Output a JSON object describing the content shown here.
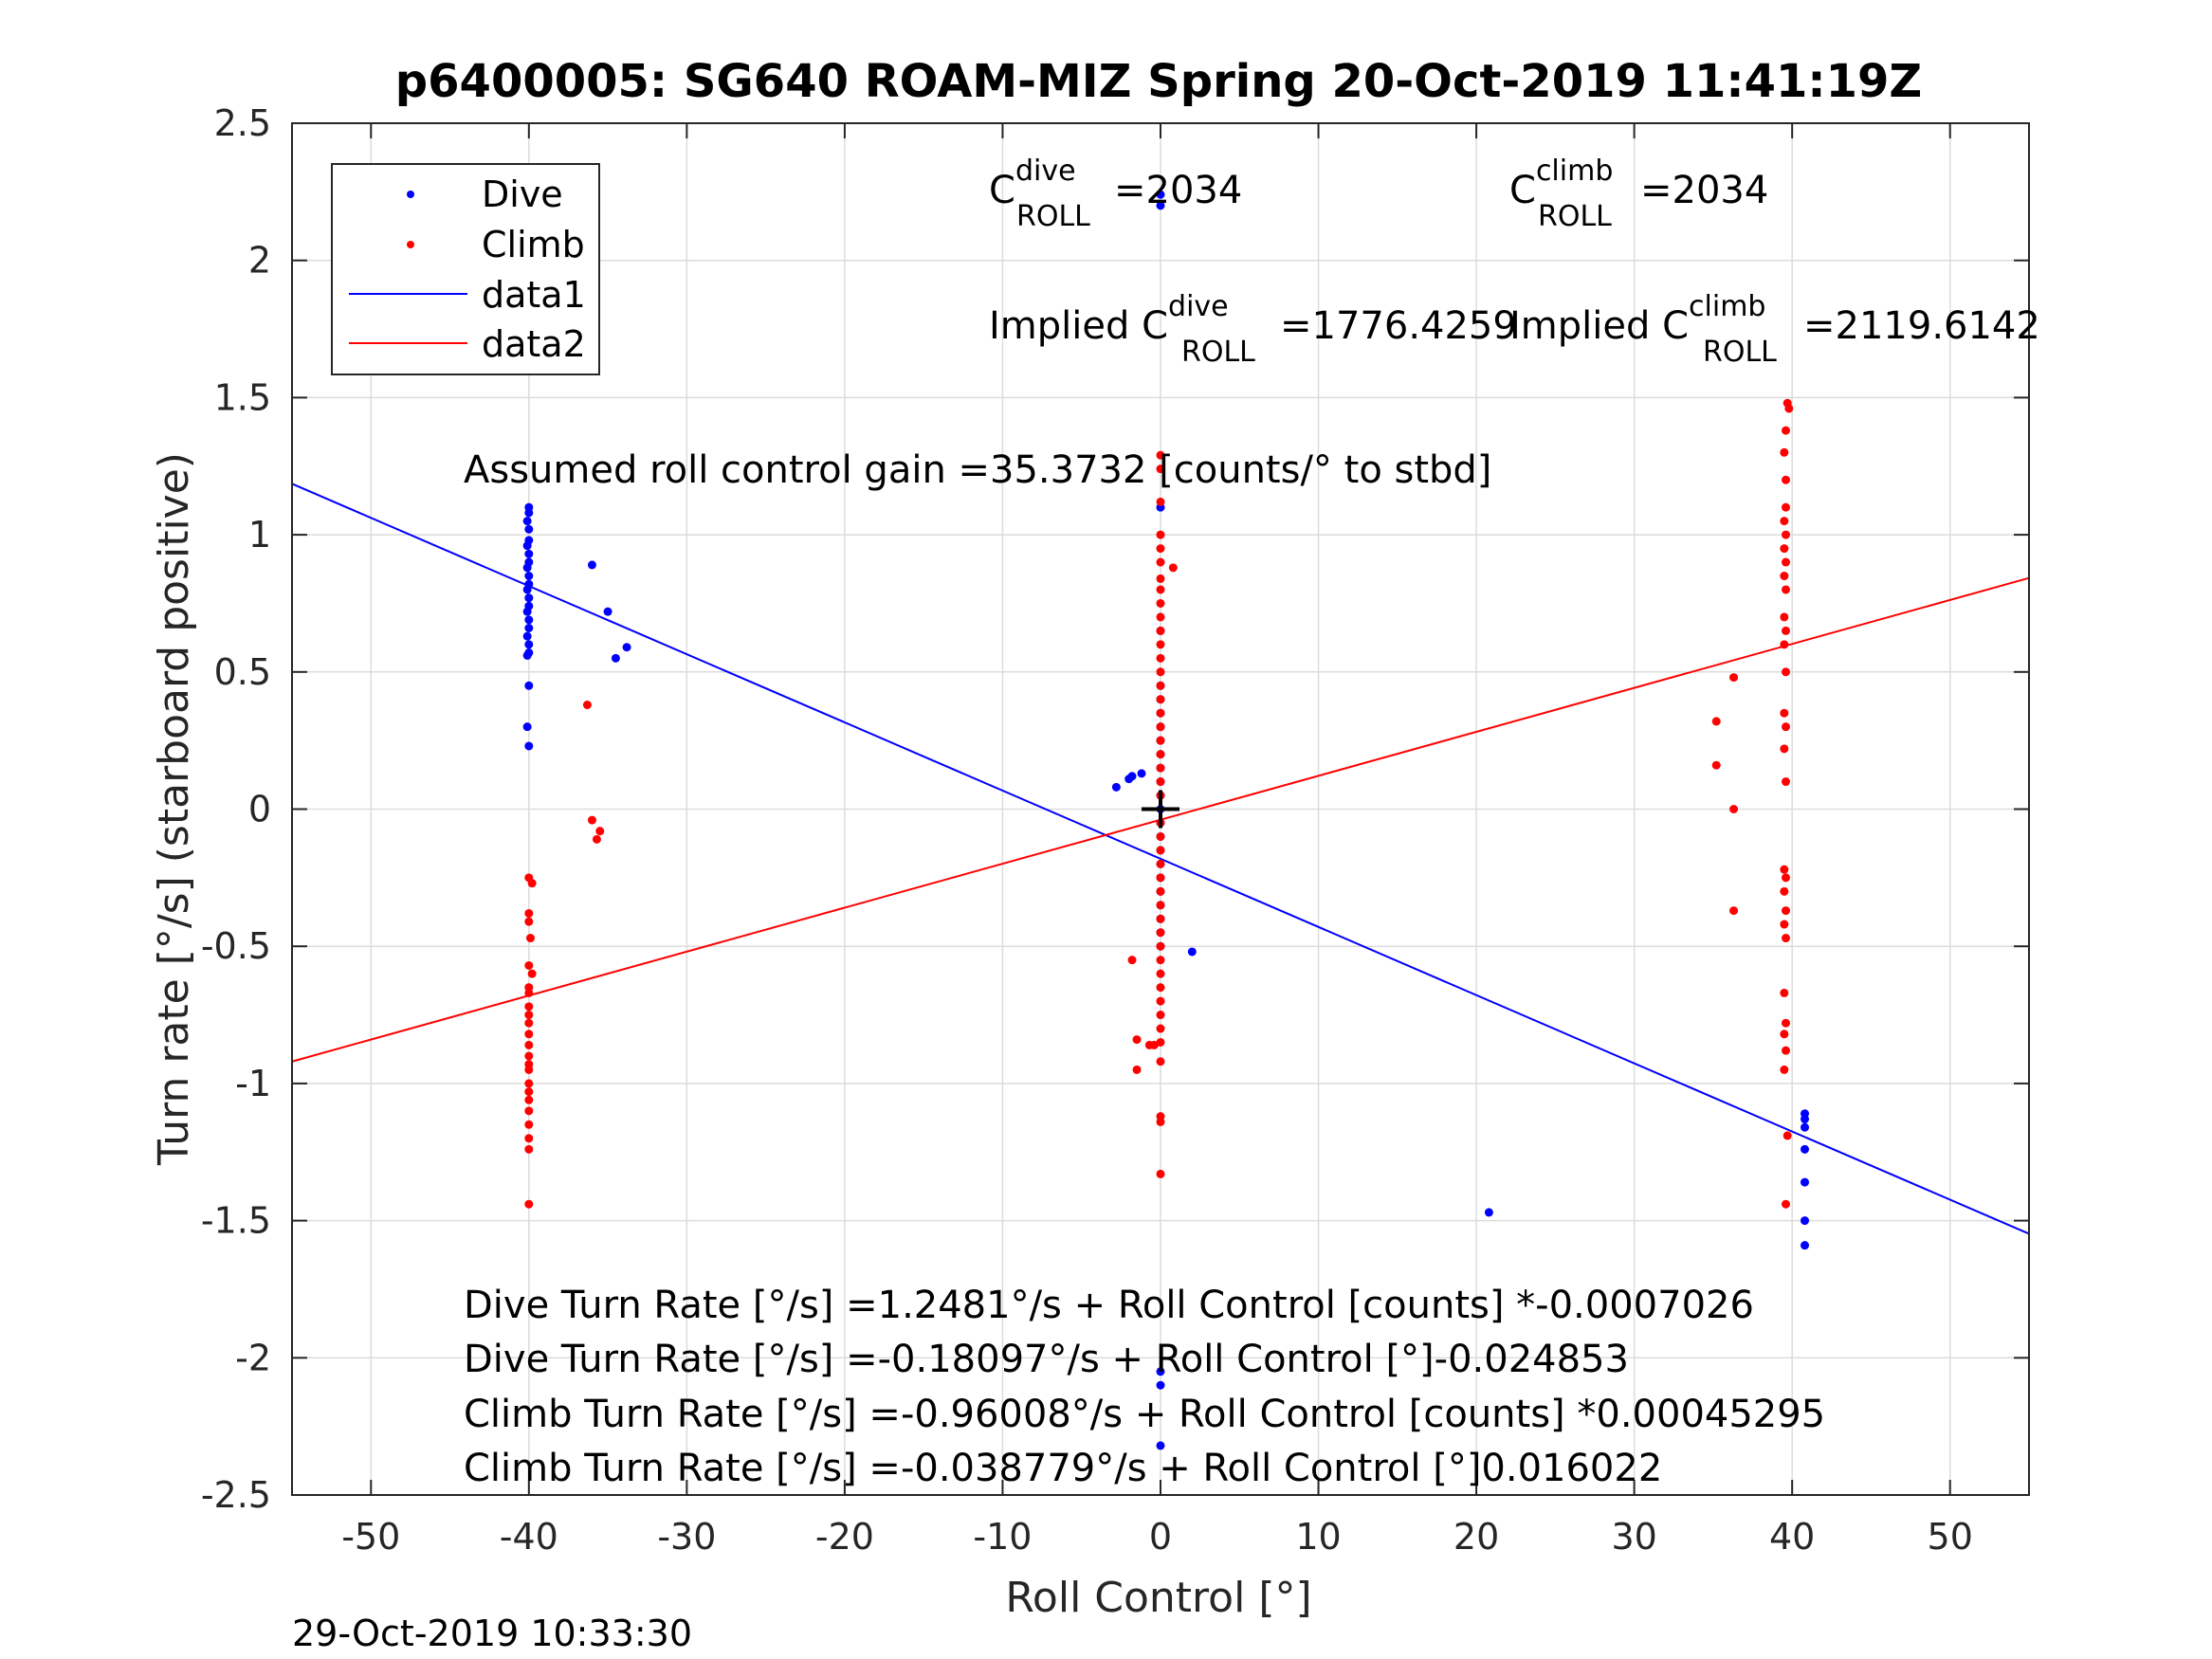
{
  "chart_data": {
    "type": "scatter",
    "title": "p6400005: SG640 ROAM-MIZ Spring 20-Oct-2019 11:41:19Z",
    "xlabel": "Roll Control [°]",
    "ylabel": "Turn rate [°/s] (starboard positive)",
    "xlim": [
      -55,
      55
    ],
    "ylim": [
      -2.5,
      2.5
    ],
    "xticks": [
      -50,
      -40,
      -30,
      -20,
      -10,
      0,
      10,
      20,
      30,
      40,
      50
    ],
    "yticks": [
      -2.5,
      -2,
      -1.5,
      -1,
      -0.5,
      0,
      0.5,
      1,
      1.5,
      2,
      2.5
    ],
    "xtick_labels": [
      "-50",
      "-40",
      "-30",
      "-20",
      "-10",
      "0",
      "10",
      "20",
      "30",
      "40",
      "50"
    ],
    "ytick_labels": [
      "-2.5",
      "-2",
      "-1.5",
      "-1",
      "-0.5",
      "0",
      "0.5",
      "1",
      "1.5",
      "2",
      "2.5"
    ],
    "grid": true,
    "legend_position": "top-left",
    "legend": [
      {
        "label": "Dive",
        "kind": "marker",
        "color": "#0000ff"
      },
      {
        "label": "Climb",
        "kind": "marker",
        "color": "#ff0000"
      },
      {
        "label": "data1",
        "kind": "line",
        "color": "#0000ff"
      },
      {
        "label": "data2",
        "kind": "line",
        "color": "#ff0000"
      }
    ],
    "series": [
      {
        "name": "Dive",
        "color": "#0000ff",
        "points": [
          [
            -40,
            1.1
          ],
          [
            -40,
            1.08
          ],
          [
            -40.1,
            1.05
          ],
          [
            -40,
            1.02
          ],
          [
            -40,
            0.98
          ],
          [
            -40.1,
            0.96
          ],
          [
            -40,
            0.93
          ],
          [
            -40,
            0.9
          ],
          [
            -40.1,
            0.88
          ],
          [
            -40,
            0.85
          ],
          [
            -40,
            0.82
          ],
          [
            -40.1,
            0.8
          ],
          [
            -40,
            0.77
          ],
          [
            -40,
            0.74
          ],
          [
            -40.1,
            0.72
          ],
          [
            -40,
            0.69
          ],
          [
            -40,
            0.66
          ],
          [
            -40.1,
            0.63
          ],
          [
            -40,
            0.6
          ],
          [
            -40,
            0.57
          ],
          [
            -40.1,
            0.56
          ],
          [
            -40,
            0.45
          ],
          [
            -40.1,
            0.3
          ],
          [
            -40,
            0.23
          ],
          [
            -36,
            0.89
          ],
          [
            -35,
            0.72
          ],
          [
            -34.5,
            0.55
          ],
          [
            -33.8,
            0.59
          ],
          [
            -2.8,
            0.08
          ],
          [
            -2,
            0.11
          ],
          [
            -1.8,
            0.12
          ],
          [
            -1.2,
            0.13
          ],
          [
            0,
            2.24
          ],
          [
            0,
            2.2
          ],
          [
            0,
            1.1
          ],
          [
            0,
            0.65
          ],
          [
            0,
            0.45
          ],
          [
            0,
            0.4
          ],
          [
            0,
            0.35
          ],
          [
            0,
            0.3
          ],
          [
            0,
            0.25
          ],
          [
            0,
            0.2
          ],
          [
            0,
            0.15
          ],
          [
            0,
            0.1
          ],
          [
            0,
            0.05
          ],
          [
            0,
            0.0
          ],
          [
            0,
            -0.05
          ],
          [
            0,
            -0.1
          ],
          [
            0,
            -0.15
          ],
          [
            0,
            -0.2
          ],
          [
            0,
            -0.25
          ],
          [
            0,
            -0.3
          ],
          [
            0,
            -0.35
          ],
          [
            0,
            -0.4
          ],
          [
            0,
            -0.45
          ],
          [
            0,
            -0.5
          ],
          [
            2,
            -0.52
          ],
          [
            0,
            -2.05
          ],
          [
            0,
            -2.1
          ],
          [
            0,
            -2.32
          ],
          [
            20.8,
            -1.47
          ],
          [
            40.8,
            -1.11
          ],
          [
            40.8,
            -1.13
          ],
          [
            40.8,
            -1.16
          ],
          [
            40.8,
            -1.24
          ],
          [
            40.8,
            -1.36
          ],
          [
            40.8,
            -1.5
          ],
          [
            40.8,
            -1.59
          ]
        ]
      },
      {
        "name": "Climb",
        "color": "#ff0000",
        "points": [
          [
            -40,
            -0.25
          ],
          [
            -39.8,
            -0.27
          ],
          [
            -40,
            -0.38
          ],
          [
            -40,
            -0.41
          ],
          [
            -39.9,
            -0.47
          ],
          [
            -40,
            -0.57
          ],
          [
            -39.8,
            -0.6
          ],
          [
            -40,
            -0.65
          ],
          [
            -40,
            -0.67
          ],
          [
            -40,
            -0.72
          ],
          [
            -40,
            -0.75
          ],
          [
            -40,
            -0.78
          ],
          [
            -40,
            -0.82
          ],
          [
            -40,
            -0.86
          ],
          [
            -40,
            -0.9
          ],
          [
            -40,
            -0.93
          ],
          [
            -40,
            -0.95
          ],
          [
            -40,
            -1.0
          ],
          [
            -40,
            -1.03
          ],
          [
            -40,
            -1.06
          ],
          [
            -40,
            -1.1
          ],
          [
            -40,
            -1.15
          ],
          [
            -40,
            -1.2
          ],
          [
            -40,
            -1.24
          ],
          [
            -40,
            -1.44
          ],
          [
            -36.3,
            0.38
          ],
          [
            -36,
            -0.04
          ],
          [
            -35.7,
            -0.11
          ],
          [
            -35.5,
            -0.08
          ],
          [
            0,
            1.29
          ],
          [
            0,
            1.24
          ],
          [
            0,
            1.12
          ],
          [
            0,
            1.0
          ],
          [
            0,
            0.95
          ],
          [
            0,
            0.9
          ],
          [
            0.8,
            0.88
          ],
          [
            0,
            0.84
          ],
          [
            0,
            0.8
          ],
          [
            0,
            0.75
          ],
          [
            0,
            0.7
          ],
          [
            0,
            0.65
          ],
          [
            0,
            0.6
          ],
          [
            0,
            0.55
          ],
          [
            0,
            0.5
          ],
          [
            0,
            0.45
          ],
          [
            0,
            0.4
          ],
          [
            0,
            0.35
          ],
          [
            0,
            0.3
          ],
          [
            0,
            0.25
          ],
          [
            0,
            0.2
          ],
          [
            0,
            0.15
          ],
          [
            0,
            0.1
          ],
          [
            0,
            0.05
          ],
          [
            0,
            -0.05
          ],
          [
            0,
            -0.1
          ],
          [
            0,
            -0.15
          ],
          [
            0,
            -0.2
          ],
          [
            0,
            -0.25
          ],
          [
            0,
            -0.3
          ],
          [
            0,
            -0.35
          ],
          [
            0,
            -0.4
          ],
          [
            0,
            -0.45
          ],
          [
            0,
            -0.5
          ],
          [
            0,
            -0.55
          ],
          [
            0,
            -0.6
          ],
          [
            0,
            -0.65
          ],
          [
            0,
            -0.7
          ],
          [
            0,
            -0.75
          ],
          [
            0,
            -0.8
          ],
          [
            0,
            -0.85
          ],
          [
            0,
            -0.92
          ],
          [
            0,
            -1.12
          ],
          [
            0,
            -1.14
          ],
          [
            0,
            -1.33
          ],
          [
            -1.8,
            -0.55
          ],
          [
            -1.5,
            -0.84
          ],
          [
            -1.5,
            -0.95
          ],
          [
            -0.7,
            -0.86
          ],
          [
            -0.4,
            -0.86
          ],
          [
            35.2,
            0.32
          ],
          [
            35.2,
            0.16
          ],
          [
            36.3,
            0.48
          ],
          [
            36.3,
            0.0
          ],
          [
            36.3,
            -0.37
          ],
          [
            39.7,
            1.48
          ],
          [
            39.8,
            1.46
          ],
          [
            39.6,
            1.38
          ],
          [
            39.5,
            1.3
          ],
          [
            39.6,
            1.2
          ],
          [
            39.6,
            1.1
          ],
          [
            39.5,
            1.05
          ],
          [
            39.6,
            1.0
          ],
          [
            39.5,
            0.95
          ],
          [
            39.6,
            0.9
          ],
          [
            39.5,
            0.85
          ],
          [
            39.6,
            0.8
          ],
          [
            39.5,
            0.7
          ],
          [
            39.6,
            0.65
          ],
          [
            39.5,
            0.6
          ],
          [
            39.6,
            0.5
          ],
          [
            39.5,
            0.35
          ],
          [
            39.6,
            0.3
          ],
          [
            39.5,
            0.22
          ],
          [
            39.6,
            0.1
          ],
          [
            39.5,
            -0.22
          ],
          [
            39.6,
            -0.25
          ],
          [
            39.5,
            -0.3
          ],
          [
            39.6,
            -0.37
          ],
          [
            39.5,
            -0.42
          ],
          [
            39.6,
            -0.47
          ],
          [
            39.5,
            -0.67
          ],
          [
            39.6,
            -0.78
          ],
          [
            39.5,
            -0.82
          ],
          [
            39.6,
            -0.88
          ],
          [
            39.5,
            -0.95
          ],
          [
            39.7,
            -1.19
          ],
          [
            39.6,
            -1.44
          ]
        ]
      }
    ],
    "fit_lines": [
      {
        "name": "data1",
        "color": "#0000ff",
        "x": [
          -55,
          55
        ],
        "y": [
          1.1859,
          -1.5479
        ]
      },
      {
        "name": "data2",
        "color": "#ff0000",
        "x": [
          -55,
          55
        ],
        "y": [
          -0.92,
          0.8424
        ]
      }
    ],
    "center_marker": {
      "x": 0,
      "y": 0,
      "symbol": "+"
    },
    "annotations": {
      "c_dive_prefix": "C",
      "c_dive_sup": "dive",
      "c_dive_sub": "ROLL",
      "c_dive_value": "=2034",
      "c_climb_prefix": "C",
      "c_climb_sup": "climb",
      "c_climb_sub": "ROLL",
      "c_climb_value": "=2034",
      "implied_dive_prefix": "Implied C",
      "implied_dive_sup": "dive",
      "implied_dive_sub": "ROLL",
      "implied_dive_value": "=1776.4259",
      "implied_climb_prefix": "Implied C",
      "implied_climb_sup": "climb",
      "implied_climb_sub": "ROLL",
      "implied_climb_value": "=2119.6142",
      "assumed_gain": "Assumed roll control gain =35.3732 [counts/° to stbd]",
      "eq1": "Dive Turn Rate [°/s] =1.2481°/s + Roll Control [counts] *-0.0007026",
      "eq2": "Dive Turn Rate [°/s] =-0.18097°/s + Roll Control [°]-0.024853",
      "eq3": "Climb Turn Rate [°/s] =-0.96008°/s + Roll Control [counts] *0.00045295",
      "eq4": "Climb Turn Rate [°/s] =-0.038779°/s + Roll Control [°]0.016022"
    },
    "timestamp": "29-Oct-2019 10:33:30"
  }
}
